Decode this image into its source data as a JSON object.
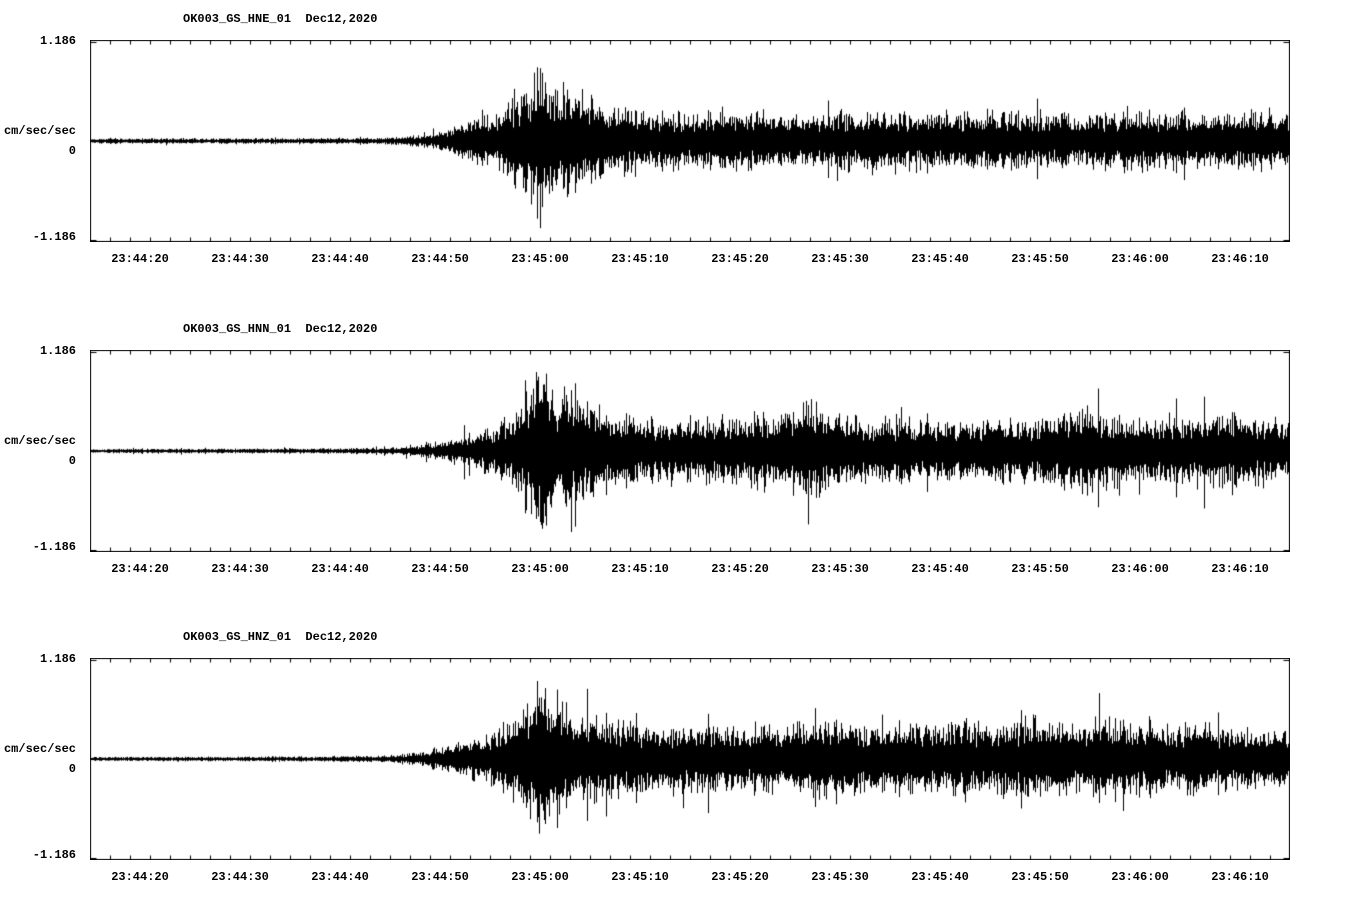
{
  "app": {
    "background": "#ffffff",
    "trace_color": "#000000",
    "axis_color": "#000000"
  },
  "chart_data": [
    {
      "type": "line",
      "kind": "seismogram-trace",
      "title": "OK003_GS_HNE_01  Dec12,2020",
      "ylabel": "cm/sec/sec",
      "y_tick_labels": {
        "top": "1.186",
        "zero": "0",
        "bottom": "-1.186"
      },
      "ylim": [
        -1.186,
        1.186
      ],
      "x_tick_labels": [
        "23:44:20",
        "23:44:30",
        "23:44:40",
        "23:44:50",
        "23:45:00",
        "23:45:10",
        "23:45:20",
        "23:45:30",
        "23:45:40",
        "23:45:50",
        "23:46:00",
        "23:46:10"
      ],
      "x_start_label_offset_sec": 5,
      "x_tick_interval_sec": 10,
      "minor_tick_interval_sec": 2,
      "duration_sec": 120,
      "seed": 7,
      "envelope": [
        [
          0,
          0.035
        ],
        [
          20,
          0.04
        ],
        [
          28,
          0.045
        ],
        [
          31,
          0.06
        ],
        [
          34,
          0.1
        ],
        [
          36,
          0.2
        ],
        [
          38,
          0.3
        ],
        [
          40,
          0.38
        ],
        [
          42,
          0.55
        ],
        [
          44,
          0.8
        ],
        [
          45,
          1.05
        ],
        [
          46,
          0.92
        ],
        [
          47,
          0.78
        ],
        [
          48,
          0.85
        ],
        [
          50,
          0.62
        ],
        [
          52,
          0.5
        ],
        [
          55,
          0.44
        ],
        [
          60,
          0.38
        ],
        [
          65,
          0.43
        ],
        [
          70,
          0.36
        ],
        [
          75,
          0.42
        ],
        [
          80,
          0.44
        ],
        [
          85,
          0.38
        ],
        [
          90,
          0.42
        ],
        [
          95,
          0.4
        ],
        [
          100,
          0.38
        ],
        [
          105,
          0.43
        ],
        [
          110,
          0.38
        ],
        [
          115,
          0.41
        ],
        [
          120,
          0.42
        ]
      ]
    },
    {
      "type": "line",
      "kind": "seismogram-trace",
      "title": "OK003_GS_HNN_01  Dec12,2020",
      "ylabel": "cm/sec/sec",
      "y_tick_labels": {
        "top": "1.186",
        "zero": "0",
        "bottom": "-1.186"
      },
      "ylim": [
        -1.186,
        1.186
      ],
      "x_tick_labels": [
        "23:44:20",
        "23:44:30",
        "23:44:40",
        "23:44:50",
        "23:45:00",
        "23:45:10",
        "23:45:20",
        "23:45:30",
        "23:45:40",
        "23:45:50",
        "23:46:00",
        "23:46:10"
      ],
      "x_start_label_offset_sec": 5,
      "x_tick_interval_sec": 10,
      "minor_tick_interval_sec": 2,
      "duration_sec": 120,
      "seed": 13,
      "envelope": [
        [
          0,
          0.03
        ],
        [
          22,
          0.035
        ],
        [
          30,
          0.05
        ],
        [
          33,
          0.08
        ],
        [
          36,
          0.16
        ],
        [
          39,
          0.3
        ],
        [
          42,
          0.48
        ],
        [
          44,
          0.85
        ],
        [
          45,
          1.15
        ],
        [
          46,
          0.95
        ],
        [
          48,
          0.8
        ],
        [
          50,
          0.65
        ],
        [
          53,
          0.52
        ],
        [
          57,
          0.43
        ],
        [
          62,
          0.46
        ],
        [
          66,
          0.5
        ],
        [
          70,
          0.56
        ],
        [
          72,
          0.72
        ],
        [
          74,
          0.52
        ],
        [
          78,
          0.43
        ],
        [
          82,
          0.46
        ],
        [
          86,
          0.4
        ],
        [
          90,
          0.46
        ],
        [
          94,
          0.42
        ],
        [
          98,
          0.55
        ],
        [
          100,
          0.62
        ],
        [
          102,
          0.5
        ],
        [
          106,
          0.43
        ],
        [
          110,
          0.46
        ],
        [
          114,
          0.5
        ],
        [
          118,
          0.43
        ],
        [
          120,
          0.45
        ]
      ]
    },
    {
      "type": "line",
      "kind": "seismogram-trace",
      "title": "OK003_GS_HNZ_01  Dec12,2020",
      "ylabel": "cm/sec/sec",
      "y_tick_labels": {
        "top": "1.186",
        "zero": "0",
        "bottom": "-1.186"
      },
      "ylim": [
        -1.186,
        1.186
      ],
      "x_tick_labels": [
        "23:44:20",
        "23:44:30",
        "23:44:40",
        "23:44:50",
        "23:45:00",
        "23:45:10",
        "23:45:20",
        "23:45:30",
        "23:45:40",
        "23:45:50",
        "23:46:00",
        "23:46:10"
      ],
      "x_start_label_offset_sec": 5,
      "x_tick_interval_sec": 10,
      "minor_tick_interval_sec": 2,
      "duration_sec": 120,
      "seed": 29,
      "envelope": [
        [
          0,
          0.03
        ],
        [
          22,
          0.035
        ],
        [
          30,
          0.05
        ],
        [
          33,
          0.1
        ],
        [
          36,
          0.2
        ],
        [
          38,
          0.28
        ],
        [
          40,
          0.36
        ],
        [
          42,
          0.55
        ],
        [
          44,
          0.85
        ],
        [
          45,
          1.1
        ],
        [
          46,
          0.9
        ],
        [
          48,
          0.72
        ],
        [
          50,
          0.6
        ],
        [
          54,
          0.5
        ],
        [
          58,
          0.45
        ],
        [
          62,
          0.5
        ],
        [
          66,
          0.46
        ],
        [
          70,
          0.5
        ],
        [
          74,
          0.56
        ],
        [
          78,
          0.46
        ],
        [
          82,
          0.5
        ],
        [
          86,
          0.55
        ],
        [
          90,
          0.5
        ],
        [
          94,
          0.55
        ],
        [
          98,
          0.5
        ],
        [
          102,
          0.56
        ],
        [
          106,
          0.46
        ],
        [
          110,
          0.5
        ],
        [
          114,
          0.46
        ],
        [
          118,
          0.42
        ],
        [
          120,
          0.45
        ]
      ]
    }
  ],
  "layout_note": "three vertically stacked strong-motion acceleration traces"
}
